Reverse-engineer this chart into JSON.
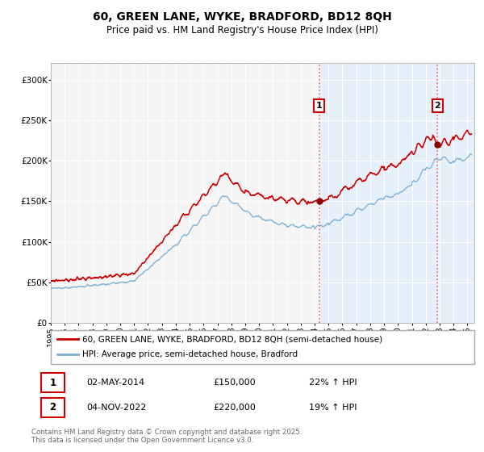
{
  "title_line1": "60, GREEN LANE, WYKE, BRADFORD, BD12 8QH",
  "title_line2": "Price paid vs. HM Land Registry's House Price Index (HPI)",
  "legend_label1": "60, GREEN LANE, WYKE, BRADFORD, BD12 8QH (semi-detached house)",
  "legend_label2": "HPI: Average price, semi-detached house, Bradford",
  "annotation1": {
    "num": "1",
    "date": "02-MAY-2014",
    "price": "£150,000",
    "hpi": "22% ↑ HPI"
  },
  "annotation2": {
    "num": "2",
    "date": "04-NOV-2022",
    "price": "£220,000",
    "hpi": "19% ↑ HPI"
  },
  "vline1_x": 2014.33,
  "vline2_x": 2022.84,
  "vline1_y": 150000,
  "vline2_y": 220000,
  "ylim": [
    0,
    320000
  ],
  "xlim_start": 1995,
  "xlim_end": 2025.5,
  "ytick_values": [
    0,
    50000,
    100000,
    150000,
    200000,
    250000,
    300000
  ],
  "ytick_labels": [
    "£0",
    "£50K",
    "£100K",
    "£150K",
    "£200K",
    "£250K",
    "£300K"
  ],
  "xtick_values": [
    1995,
    1996,
    1997,
    1998,
    1999,
    2000,
    2001,
    2002,
    2003,
    2004,
    2005,
    2006,
    2007,
    2008,
    2009,
    2010,
    2011,
    2012,
    2013,
    2014,
    2015,
    2016,
    2017,
    2018,
    2019,
    2020,
    2021,
    2022,
    2023,
    2024,
    2025
  ],
  "red_color": "#cc0000",
  "blue_color": "#7bafd4",
  "bg_shade_color": "#ddeeff",
  "chart_bg": "#f5f5f5",
  "grid_color": "#ffffff",
  "footer": "Contains HM Land Registry data © Crown copyright and database right 2025.\nThis data is licensed under the Open Government Licence v3.0."
}
